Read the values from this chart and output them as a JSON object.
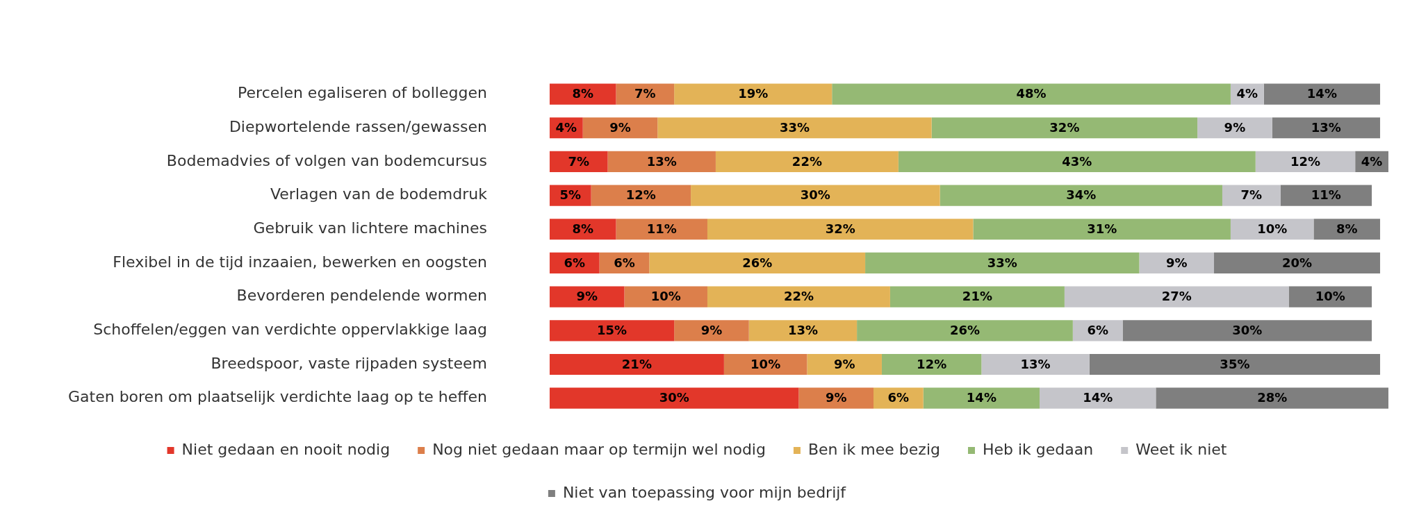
{
  "chart_data": {
    "type": "bar",
    "orientation": "horizontal",
    "stacked": true,
    "legend": "bottom",
    "grid": false,
    "tick_labels": "y",
    "xlim": [
      0,
      101
    ],
    "categories": [
      "Percelen egaliseren of bolleggen",
      "Diepwortelende rassen/gewassen",
      "Bodemadvies of volgen van bodemcursus",
      "Verlagen van de bodemdruk",
      "Gebruik van lichtere machines",
      "Flexibel in de tijd inzaaien, bewerken en oogsten",
      "Bevorderen pendelende wormen",
      "Schoffelen/eggen van verdichte oppervlakkige laag",
      "Breedspoor, vaste rijpaden systeem",
      "Gaten boren om plaatselijk verdichte laag op te heffen"
    ],
    "series": [
      {
        "name": "Niet gedaan en nooit nodig",
        "color": "#e2372a",
        "values": [
          8,
          4,
          7,
          5,
          8,
          6,
          9,
          15,
          21,
          30
        ],
        "value_labels": [
          "8%",
          "4%",
          "7%",
          "5%",
          "8%",
          "6%",
          "9%",
          "15%",
          "21%",
          "30%"
        ]
      },
      {
        "name": "Nog niet gedaan maar op termijn wel nodig",
        "color": "#dc7f4b",
        "values": [
          7,
          9,
          13,
          12,
          11,
          6,
          10,
          9,
          10,
          9
        ],
        "value_labels": [
          "7%",
          "9%",
          "13%",
          "12%",
          "11%",
          "6%",
          "10%",
          "9%",
          "10%",
          "9%"
        ]
      },
      {
        "name": "Ben ik mee bezig",
        "color": "#e3b357",
        "values": [
          19,
          33,
          22,
          30,
          32,
          26,
          22,
          13,
          9,
          6
        ],
        "value_labels": [
          "19%",
          "33%",
          "22%",
          "30%",
          "32%",
          "26%",
          "22%",
          "13%",
          "9%",
          "6%"
        ]
      },
      {
        "name": "Heb ik gedaan",
        "color": "#95b974",
        "values": [
          48,
          32,
          43,
          34,
          31,
          33,
          21,
          26,
          12,
          14
        ],
        "value_labels": [
          "48%",
          "32%",
          "43%",
          "34%",
          "31%",
          "33%",
          "21%",
          "26%",
          "12%",
          "14%"
        ]
      },
      {
        "name": "Weet ik niet",
        "color": "#c5c5ca",
        "values": [
          4,
          9,
          12,
          7,
          10,
          9,
          27,
          6,
          13,
          14
        ],
        "value_labels": [
          "4%",
          "9%",
          "12%",
          "7%",
          "10%",
          "9%",
          "27%",
          "6%",
          "13%",
          "14%"
        ]
      },
      {
        "name": "Niet van toepassing voor mijn bedrijf",
        "color": "#7f7f7f",
        "values": [
          14,
          13,
          4,
          11,
          8,
          20,
          10,
          30,
          35,
          28
        ],
        "value_labels": [
          "14%",
          "13%",
          "4%",
          "11%",
          "8%",
          "20%",
          "10%",
          "30%",
          "35%",
          "28%"
        ]
      }
    ]
  }
}
